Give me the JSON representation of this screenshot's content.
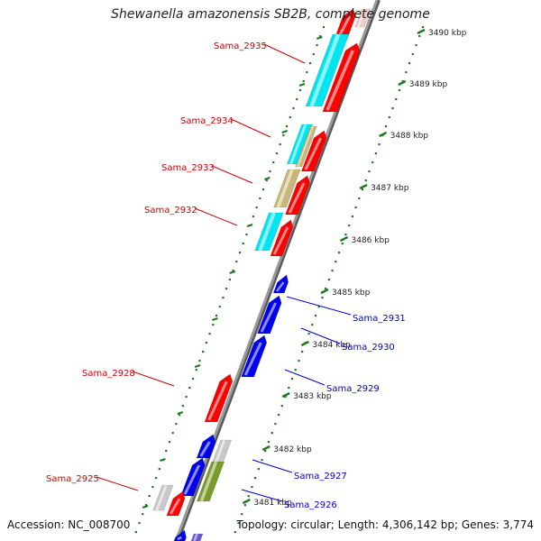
{
  "title": "Shewanella amazonensis SB2B, complete genome",
  "footer": {
    "accession": "Accession: NC_008700",
    "topology": "Topology: circular; Length: 4,306,142 bp; Genes: 3,774"
  },
  "colors": {
    "backbone": "#9a9a9a",
    "forward_red": "#ff0000",
    "reverse_blue": "#0000ee",
    "cyan": "#00e5f0",
    "khaki": "#c9b77a",
    "olive": "#7a9a2a",
    "gray": "#c8c8c8",
    "tick_green": "#1e7a1e",
    "label_red": "#d00000",
    "label_blue": "#0000cc"
  },
  "scale_labels": [
    {
      "text": "3490 kbp"
    },
    {
      "text": "3489 kbp"
    },
    {
      "text": "3488 kbp"
    },
    {
      "text": "3487 kbp"
    },
    {
      "text": "3486 kbp"
    },
    {
      "text": "3485 kbp"
    },
    {
      "text": "3484 kbp"
    },
    {
      "text": "3483 kbp"
    },
    {
      "text": "3482 kbp"
    },
    {
      "text": "3481 kbp"
    }
  ],
  "gene_labels_left": [
    {
      "text": "Sama_2935"
    },
    {
      "text": "Sama_2934"
    },
    {
      "text": "Sama_2933"
    },
    {
      "text": "Sama_2932"
    },
    {
      "text": "Sama_2928"
    },
    {
      "text": "Sama_2925"
    }
  ],
  "gene_labels_right": [
    {
      "text": "Sama_2931"
    },
    {
      "text": "Sama_2930"
    },
    {
      "text": "Sama_2929"
    },
    {
      "text": "Sama_2927"
    },
    {
      "text": "Sama_2926"
    }
  ]
}
